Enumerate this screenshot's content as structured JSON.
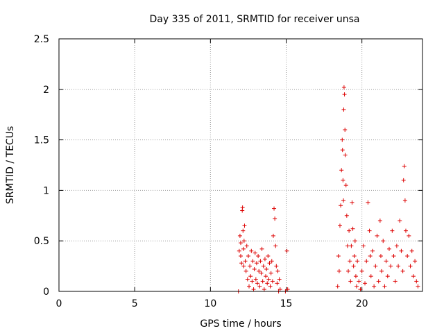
{
  "chart_data": {
    "type": "scatter",
    "title": "Day 335 of 2011, SRMTID for receiver unsa",
    "xlabel": "GPS time / hours",
    "ylabel": "SRMTID / TECUs",
    "xlim": [
      0,
      24
    ],
    "ylim": [
      0,
      2.5
    ],
    "x_ticks": [
      0,
      5,
      10,
      15,
      20
    ],
    "y_ticks": [
      0,
      0.5,
      1,
      1.5,
      2,
      2.5
    ],
    "x_tick_labels": [
      "0",
      "5",
      "10",
      "15",
      "20"
    ],
    "y_tick_labels": [
      "0",
      "0.5",
      "1",
      "1.5",
      "2",
      "2.5"
    ],
    "grid": true,
    "marker": "+",
    "series": [
      {
        "color": "#dd0000",
        "points": [
          [
            11.85,
            0.0
          ],
          [
            11.9,
            0.4
          ],
          [
            11.95,
            0.55
          ],
          [
            12.0,
            0.35
          ],
          [
            12.0,
            0.48
          ],
          [
            12.05,
            0.28
          ],
          [
            12.1,
            0.8
          ],
          [
            12.12,
            0.83
          ],
          [
            12.15,
            0.6
          ],
          [
            12.18,
            0.42
          ],
          [
            12.2,
            0.25
          ],
          [
            12.22,
            0.5
          ],
          [
            12.25,
            0.65
          ],
          [
            12.3,
            0.3
          ],
          [
            12.35,
            0.2
          ],
          [
            12.4,
            0.45
          ],
          [
            12.45,
            0.12
          ],
          [
            12.5,
            0.35
          ],
          [
            12.55,
            0.05
          ],
          [
            12.6,
            0.25
          ],
          [
            12.65,
            0.15
          ],
          [
            12.7,
            0.4
          ],
          [
            12.75,
            0.1
          ],
          [
            12.8,
            0.3
          ],
          [
            12.85,
            0.02
          ],
          [
            12.9,
            0.22
          ],
          [
            12.95,
            0.38
          ],
          [
            13.0,
            0.12
          ],
          [
            13.05,
            0.28
          ],
          [
            13.1,
            0.08
          ],
          [
            13.15,
            0.35
          ],
          [
            13.2,
            0.2
          ],
          [
            13.25,
            0.05
          ],
          [
            13.3,
            0.3
          ],
          [
            13.35,
            0.18
          ],
          [
            13.4,
            0.42
          ],
          [
            13.45,
            0.1
          ],
          [
            13.5,
            0.25
          ],
          [
            13.55,
            0.02
          ],
          [
            13.6,
            0.32
          ],
          [
            13.65,
            0.15
          ],
          [
            13.7,
            0.22
          ],
          [
            13.75,
            0.08
          ],
          [
            13.8,
            0.35
          ],
          [
            13.85,
            0.12
          ],
          [
            13.9,
            0.28
          ],
          [
            13.95,
            0.05
          ],
          [
            14.0,
            0.18
          ],
          [
            14.05,
            0.3
          ],
          [
            14.1,
            0.1
          ],
          [
            14.15,
            0.55
          ],
          [
            14.2,
            0.82
          ],
          [
            14.25,
            0.72
          ],
          [
            14.3,
            0.45
          ],
          [
            14.35,
            0.25
          ],
          [
            14.4,
            0.08
          ],
          [
            14.45,
            0.2
          ],
          [
            14.5,
            0.0
          ],
          [
            14.55,
            0.12
          ],
          [
            14.6,
            0.02
          ],
          [
            14.95,
            0.0
          ],
          [
            15.05,
            0.4
          ],
          [
            15.1,
            0.02
          ],
          [
            18.4,
            0.05
          ],
          [
            18.45,
            0.35
          ],
          [
            18.5,
            0.2
          ],
          [
            18.55,
            0.65
          ],
          [
            18.6,
            0.85
          ],
          [
            18.65,
            1.2
          ],
          [
            18.7,
            1.5
          ],
          [
            18.72,
            1.4
          ],
          [
            18.75,
            1.1
          ],
          [
            18.78,
            0.9
          ],
          [
            18.8,
            1.8
          ],
          [
            18.82,
            2.02
          ],
          [
            18.85,
            1.95
          ],
          [
            18.88,
            1.6
          ],
          [
            18.9,
            1.35
          ],
          [
            18.95,
            1.05
          ],
          [
            19.0,
            0.75
          ],
          [
            19.05,
            0.45
          ],
          [
            19.1,
            0.2
          ],
          [
            19.15,
            0.6
          ],
          [
            19.2,
            0.3
          ],
          [
            19.25,
            0.1
          ],
          [
            19.3,
            0.45
          ],
          [
            19.35,
            0.88
          ],
          [
            19.4,
            0.62
          ],
          [
            19.45,
            0.25
          ],
          [
            19.5,
            0.35
          ],
          [
            19.55,
            0.5
          ],
          [
            19.6,
            0.15
          ],
          [
            19.65,
            0.05
          ],
          [
            19.7,
            0.3
          ],
          [
            19.8,
            0.1
          ],
          [
            19.9,
            0.02
          ],
          [
            20.0,
            0.2
          ],
          [
            20.1,
            0.45
          ],
          [
            20.2,
            0.08
          ],
          [
            20.3,
            0.3
          ],
          [
            20.4,
            0.88
          ],
          [
            20.5,
            0.6
          ],
          [
            20.55,
            0.35
          ],
          [
            20.6,
            0.15
          ],
          [
            20.7,
            0.4
          ],
          [
            20.8,
            0.05
          ],
          [
            20.9,
            0.25
          ],
          [
            21.0,
            0.55
          ],
          [
            21.1,
            0.1
          ],
          [
            21.2,
            0.7
          ],
          [
            21.25,
            0.35
          ],
          [
            21.3,
            0.2
          ],
          [
            21.4,
            0.5
          ],
          [
            21.5,
            0.05
          ],
          [
            21.6,
            0.3
          ],
          [
            21.7,
            0.15
          ],
          [
            21.8,
            0.42
          ],
          [
            21.9,
            0.25
          ],
          [
            22.0,
            0.6
          ],
          [
            22.1,
            0.35
          ],
          [
            22.2,
            0.1
          ],
          [
            22.3,
            0.45
          ],
          [
            22.4,
            0.25
          ],
          [
            22.5,
            0.7
          ],
          [
            22.6,
            0.4
          ],
          [
            22.7,
            0.2
          ],
          [
            22.75,
            1.1
          ],
          [
            22.8,
            1.24
          ],
          [
            22.85,
            0.9
          ],
          [
            22.9,
            0.6
          ],
          [
            23.0,
            0.35
          ],
          [
            23.1,
            0.55
          ],
          [
            23.2,
            0.25
          ],
          [
            23.3,
            0.4
          ],
          [
            23.4,
            0.15
          ],
          [
            23.5,
            0.3
          ],
          [
            23.6,
            0.1
          ],
          [
            23.7,
            0.05
          ]
        ]
      }
    ]
  }
}
